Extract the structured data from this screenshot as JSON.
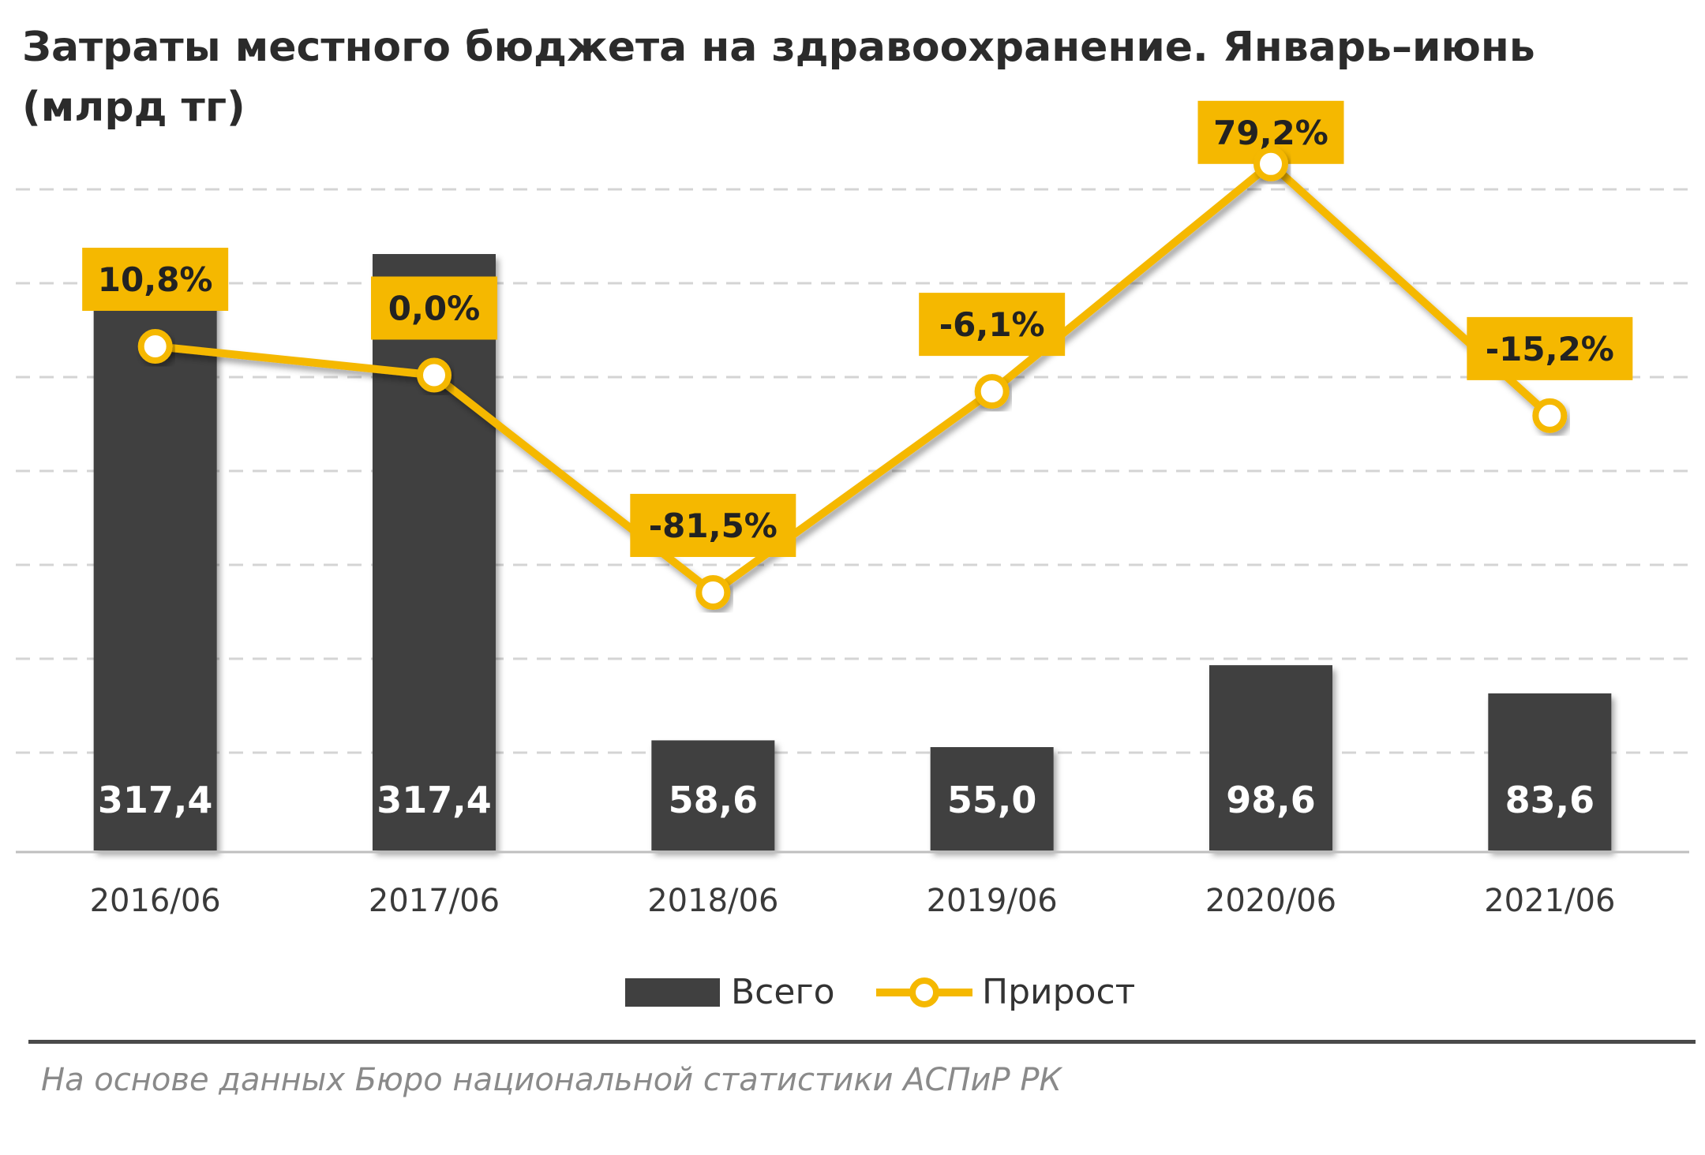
{
  "chart_data": {
    "type": "bar",
    "title": "Затраты местного бюджета на здравоохранение. Январь–июнь (млрд тг)",
    "categories": [
      "2016/06",
      "2017/06",
      "2018/06",
      "2019/06",
      "2020/06",
      "2021/06"
    ],
    "series": [
      {
        "name": "Всего",
        "type": "bar",
        "values": [
          317.4,
          317.4,
          58.6,
          55.0,
          98.6,
          83.6
        ],
        "labels": [
          "317,4",
          "317,4",
          "58,6",
          "55,0",
          "98,6",
          "83,6"
        ],
        "color": "#404040"
      },
      {
        "name": "Прирост",
        "type": "line",
        "values": [
          10.8,
          0.0,
          -81.5,
          -6.1,
          79.2,
          -15.2
        ],
        "labels": [
          "10,8%",
          "0,0%",
          "-81,5%",
          "-6,1%",
          "79,2%",
          "-15,2%"
        ],
        "color": "#F5B800"
      }
    ],
    "legend": "bottom-center",
    "grid": true,
    "source": "На основе данных Бюро национальной статистики АСПиР РК"
  }
}
